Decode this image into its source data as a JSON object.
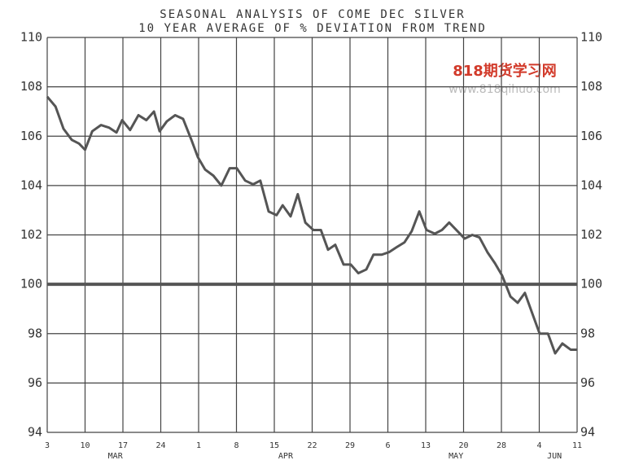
{
  "chart_data": {
    "type": "line",
    "title": "SEASONAL ANALYSIS OF COME DEC SILVER",
    "subtitle": "10 YEAR AVERAGE OF % DEVIATION FROM TREND",
    "annotations": [
      "818期货学习网",
      "www.818qihuo.com"
    ],
    "xlim": [
      0,
      14
    ],
    "xticks": [
      {
        "value": 0,
        "label": "3"
      },
      {
        "value": 1,
        "label": "10"
      },
      {
        "value": 2,
        "label": "17"
      },
      {
        "value": 3,
        "label": "24"
      },
      {
        "value": 4,
        "label": "1"
      },
      {
        "value": 5,
        "label": "8"
      },
      {
        "value": 6,
        "label": "15"
      },
      {
        "value": 7,
        "label": "22"
      },
      {
        "value": 8,
        "label": "29"
      },
      {
        "value": 9,
        "label": "6"
      },
      {
        "value": 10,
        "label": "13"
      },
      {
        "value": 11,
        "label": "20"
      },
      {
        "value": 12,
        "label": "28"
      },
      {
        "value": 13,
        "label": "4"
      },
      {
        "value": 14,
        "label": "11"
      }
    ],
    "month_labels": [
      "MAR",
      "APR",
      "MAY",
      "JUN"
    ],
    "ylim": [
      94,
      110
    ],
    "yticks": [
      94,
      96,
      98,
      100,
      102,
      104,
      106,
      108,
      110
    ],
    "grid": true,
    "reference_line": 100,
    "series": [
      {
        "color": "#555",
        "x": [
          0,
          0.22,
          0.43,
          0.65,
          0.84,
          1.0,
          1.19,
          1.42,
          1.63,
          1.83,
          1.98,
          2.19,
          2.41,
          2.62,
          2.82,
          2.97,
          3.16,
          3.38,
          3.59,
          3.81,
          3.98,
          4.17,
          4.39,
          4.6,
          4.82,
          5.01,
          5.23,
          5.44,
          5.63,
          5.85,
          6.06,
          6.22,
          6.43,
          6.62,
          6.82,
          7.03,
          7.23,
          7.42,
          7.61,
          7.83,
          8.02,
          8.22,
          8.43,
          8.62,
          8.84,
          9.03,
          9.23,
          9.44,
          9.63,
          9.83,
          10.02,
          10.24,
          10.43,
          10.62,
          10.84,
          11.03,
          11.23,
          11.42,
          11.63,
          11.83,
          12.02,
          12.24,
          12.43,
          12.62,
          12.82,
          13.01,
          13.23,
          13.42,
          13.61,
          13.83,
          14.0
        ],
        "values": [
          107.6,
          107.2,
          106.3,
          105.85,
          105.7,
          105.45,
          106.2,
          106.45,
          106.35,
          106.15,
          106.65,
          106.25,
          106.85,
          106.65,
          107.0,
          106.2,
          106.6,
          106.85,
          106.7,
          105.85,
          105.15,
          104.65,
          104.4,
          104.0,
          104.7,
          104.7,
          104.2,
          104.05,
          104.2,
          102.95,
          102.8,
          103.2,
          102.75,
          103.65,
          102.5,
          102.2,
          102.2,
          101.4,
          101.6,
          100.8,
          100.8,
          100.45,
          100.6,
          101.2,
          101.2,
          101.3,
          101.5,
          101.7,
          102.15,
          102.95,
          102.2,
          102.05,
          102.2,
          102.5,
          102.15,
          101.85,
          102.0,
          101.9,
          101.3,
          100.85,
          100.35,
          99.5,
          99.25,
          99.65,
          98.8,
          98.0,
          98.0,
          97.2,
          97.6,
          97.35,
          97.35
        ]
      }
    ]
  }
}
